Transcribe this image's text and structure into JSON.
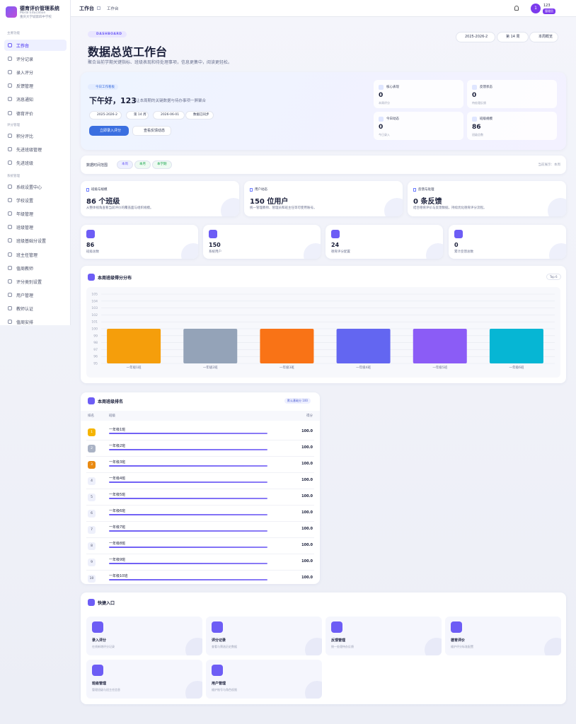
{
  "sidebar": {
    "title": "德育评价管理系统",
    "subtitle": "Moral Education",
    "school": "重庆大学城第四中学校",
    "sections": [
      {
        "heading": "主要功能",
        "items": [
          "工作台",
          "评分记录",
          "录入评分",
          "反馈管理",
          "消息通知",
          "德育评价"
        ]
      },
      {
        "heading": "评分管理",
        "items": [
          "积分评比",
          "先进班级管理",
          "先进班级"
        ]
      },
      {
        "heading": "系统管理",
        "items": [
          "系统设置中心",
          "学校设置",
          "年级管理",
          "班级管理",
          "班级基础分设置",
          "班主任管理",
          "值周教师",
          "评分类别设置",
          "用户管理",
          "教师认证",
          "值周安排"
        ]
      }
    ]
  },
  "header": {
    "title": "工作台",
    "breadcrumb": "工作台",
    "avatar": "1",
    "user": "123",
    "role": "管理员"
  },
  "hero": {
    "badge": "DASHBOARD",
    "title": "数据总览工作台",
    "subtitle": "聚合当前学期关键指标、班级表现和待处理事项，信息更集中，阅读更轻松。",
    "chips": [
      "2025-2026-2",
      "第 14 周",
      "本周概览"
    ]
  },
  "welcome": {
    "tag": "今日工作看板",
    "greeting": "下午好，123",
    "note": "让本周期的关键数据与待办事项一屏聚合",
    "chips": [
      "2025-2026-2",
      "第 14 周",
      "2026-06-01",
      "数据已同步"
    ],
    "buttons": [
      "立即录入评分",
      "查看反馈动态"
    ]
  },
  "mini_stats": [
    {
      "label": "核心表现",
      "value": 0,
      "note": "本周评分"
    },
    {
      "label": "反馈状态",
      "value": 0,
      "note": "待处理反馈"
    },
    {
      "label": "今日动态",
      "value": 0,
      "note": "今日录入"
    },
    {
      "label": "班级规模",
      "value": 86,
      "note": "班级总数"
    }
  ],
  "filter": {
    "label": "数据时间范围",
    "options": [
      "本周",
      "本月",
      "本学期"
    ],
    "current": "当前展示：本周"
  },
  "summary": [
    {
      "label": "班级与规模",
      "headline": "86 个班级",
      "text": "从整体视角查看当前评价的覆盖面与组织规模。"
    },
    {
      "label": "用户动态",
      "headline": "150 位用户",
      "text": "统一管理教师、管理员和班主任等可使用账号。"
    },
    {
      "label": "反馈与处理",
      "headline": "0 条反馈",
      "text": "结合德育评价与反馈数据，持续优化德育评分流程。"
    }
  ],
  "stats": [
    {
      "value": 86,
      "label": "班级总数"
    },
    {
      "value": 150,
      "label": "系统用户"
    },
    {
      "value": 24,
      "label": "德育评分配置"
    },
    {
      "value": 0,
      "label": "累计反馈总数"
    }
  ],
  "chart_data": {
    "type": "bar",
    "title": "本周班级得分分布",
    "tag": "Top 6",
    "categories": [
      "一年级1班",
      "一年级2班",
      "一年级3班",
      "一年级4班",
      "一年级5班",
      "一年级6班"
    ],
    "values": [
      100,
      100,
      100,
      100,
      100,
      100
    ],
    "colors": [
      "#f59e0b",
      "#94a3b8",
      "#f97316",
      "#6366f1",
      "#8b5cf6",
      "#06b6d4"
    ],
    "ylim": [
      95,
      105
    ],
    "yticks": [
      95,
      96,
      97,
      98,
      99,
      100,
      101,
      102,
      103,
      104,
      105
    ],
    "grid": true
  },
  "ranking": {
    "title": "本周班级排名",
    "tag": "默认基础分 100",
    "headers": [
      "排名",
      "班级",
      "得分"
    ],
    "rows": [
      [
        1,
        "一年级1班",
        "100.0"
      ],
      [
        2,
        "一年级2班",
        "100.0"
      ],
      [
        3,
        "一年级3班",
        "100.0"
      ],
      [
        4,
        "一年级4班",
        "100.0"
      ],
      [
        5,
        "一年级5班",
        "100.0"
      ],
      [
        6,
        "一年级6班",
        "100.0"
      ],
      [
        7,
        "一年级7班",
        "100.0"
      ],
      [
        8,
        "一年级8班",
        "100.0"
      ],
      [
        9,
        "一年级9班",
        "100.0"
      ],
      [
        10,
        "一年级10班",
        "100.0"
      ]
    ]
  },
  "quick": {
    "title": "快捷入口",
    "items": [
      {
        "title": "录入评分",
        "text": "在线新增评分记录"
      },
      {
        "title": "评分记录",
        "text": "查看与筛选历史数据"
      },
      {
        "title": "反馈管理",
        "text": "统一处理待办反馈"
      },
      {
        "title": "德育评价",
        "text": "维护评分标准配置"
      },
      {
        "title": "班级管理",
        "text": "管理班级与班主任信息"
      },
      {
        "title": "用户管理",
        "text": "维护账号与角色权限"
      }
    ]
  }
}
